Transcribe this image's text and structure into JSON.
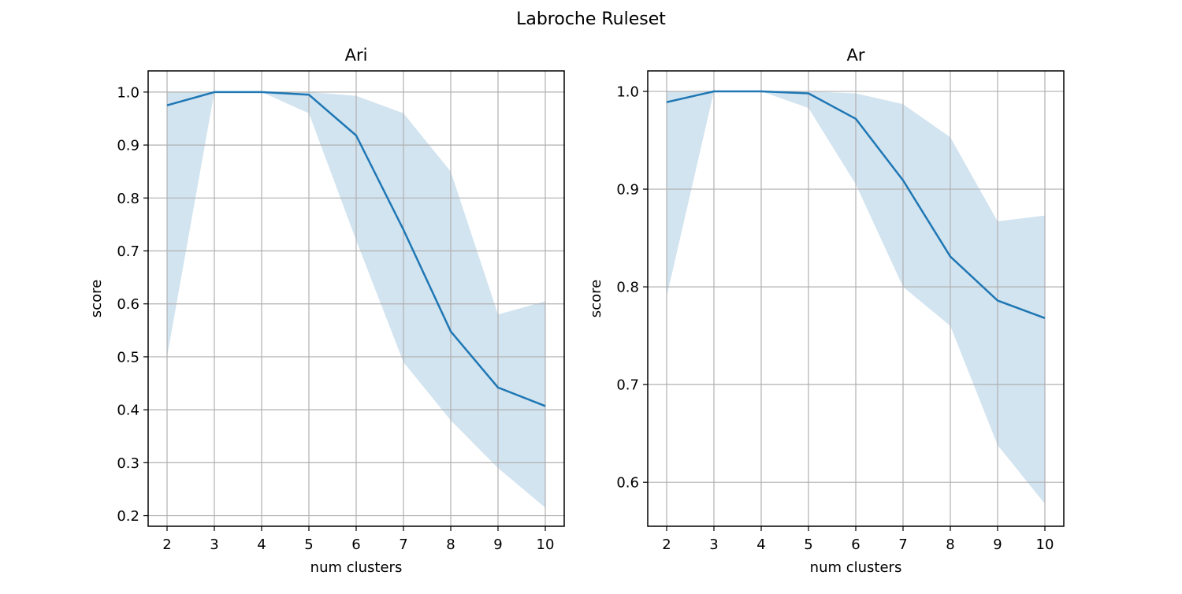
{
  "figure": {
    "title": "Labroche Ruleset"
  },
  "colors": {
    "line": "#1f77b4",
    "band": "#1f77b4",
    "grid": "#b0b0b0",
    "axis": "#000000"
  },
  "chart_data": [
    {
      "type": "line",
      "title": "Ari",
      "xlabel": "num clusters",
      "ylabel": "score",
      "xlim": [
        1.6,
        10.4
      ],
      "ylim": [
        0.18,
        1.04
      ],
      "xticks": [
        2,
        3,
        4,
        5,
        6,
        7,
        8,
        9,
        10
      ],
      "yticks": [
        0.2,
        0.3,
        0.4,
        0.5,
        0.6,
        0.7,
        0.8,
        0.9,
        1.0
      ],
      "ytick_labels": [
        "0.2",
        "0.3",
        "0.4",
        "0.5",
        "0.6",
        "0.7",
        "0.8",
        "0.9",
        "1.0"
      ],
      "grid": true,
      "x": [
        2,
        3,
        4,
        5,
        6,
        7,
        8,
        9,
        10
      ],
      "series": [
        {
          "values": [
            0.975,
            1.0,
            1.0,
            0.995,
            0.918,
            0.74,
            0.548,
            0.442,
            0.407
          ],
          "lower": [
            0.5,
            1.0,
            1.0,
            0.96,
            0.72,
            0.49,
            0.38,
            0.29,
            0.215
          ],
          "upper": [
            1.0,
            1.0,
            1.0,
            1.0,
            0.993,
            0.96,
            0.85,
            0.58,
            0.605
          ]
        }
      ]
    },
    {
      "type": "line",
      "title": "Ar",
      "xlabel": "num clusters",
      "ylabel": "score",
      "xlim": [
        1.6,
        10.4
      ],
      "ylim": [
        0.555,
        1.021
      ],
      "xticks": [
        2,
        3,
        4,
        5,
        6,
        7,
        8,
        9,
        10
      ],
      "yticks": [
        0.6,
        0.7,
        0.8,
        0.9,
        1.0
      ],
      "ytick_labels": [
        "0.6",
        "0.7",
        "0.8",
        "0.9",
        "1.0"
      ],
      "grid": true,
      "x": [
        2,
        3,
        4,
        5,
        6,
        7,
        8,
        9,
        10
      ],
      "series": [
        {
          "values": [
            0.989,
            1.0,
            1.0,
            0.998,
            0.972,
            0.909,
            0.831,
            0.786,
            0.768
          ],
          "lower": [
            0.79,
            1.0,
            1.0,
            0.983,
            0.905,
            0.8,
            0.76,
            0.638,
            0.578
          ],
          "upper": [
            1.0,
            1.0,
            1.0,
            1.0,
            0.998,
            0.987,
            0.953,
            0.867,
            0.873
          ]
        }
      ]
    }
  ]
}
